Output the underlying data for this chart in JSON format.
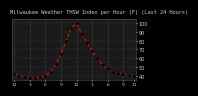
{
  "title": "Milwaukee Weather THSW Index per Hour (F) (Last 24 Hours)",
  "hours": [
    0,
    1,
    2,
    3,
    4,
    5,
    6,
    7,
    8,
    9,
    10,
    11,
    12,
    13,
    14,
    15,
    16,
    17,
    18,
    19,
    20,
    21,
    22,
    23
  ],
  "values": [
    42,
    40,
    38,
    37,
    37,
    38,
    40,
    44,
    53,
    65,
    80,
    95,
    100,
    88,
    78,
    68,
    60,
    52,
    47,
    44,
    43,
    42,
    41,
    40
  ],
  "line_color": "#ff0000",
  "marker_color": "#000000",
  "bg_color": "#000000",
  "plot_bg": "#1a1a1a",
  "title_fg": "#cccccc",
  "grid_color": "#555555",
  "tick_color": "#cccccc",
  "ylim": [
    35,
    105
  ],
  "yticks": [
    40,
    50,
    60,
    70,
    80,
    90,
    100
  ],
  "ylabel_fontsize": 3.5,
  "xlabel_fontsize": 3.2,
  "title_fontsize": 3.8,
  "gridline_positions": [
    0,
    3,
    6,
    9,
    12,
    15,
    18,
    21
  ],
  "xtick_positions": [
    0,
    3,
    6,
    9,
    12,
    15,
    18,
    21,
    23
  ],
  "xtick_labels": [
    "12",
    "3",
    "6",
    "9",
    "12",
    "3",
    "6",
    "9",
    "11"
  ]
}
